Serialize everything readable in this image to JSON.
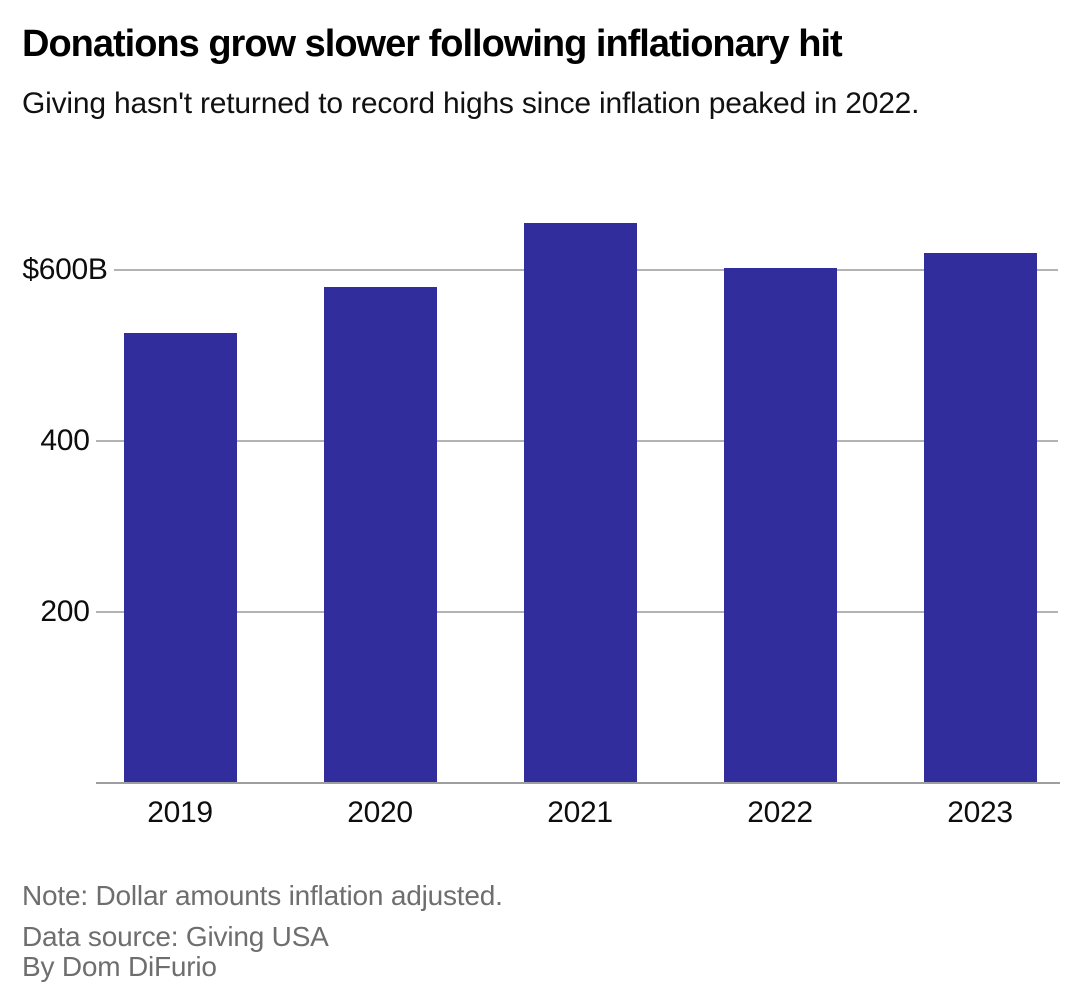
{
  "header": {
    "title": "Donations grow slower following inflationary hit",
    "subtitle": "Giving hasn't returned to record highs since inflation peaked in 2022."
  },
  "chart_data": {
    "type": "bar",
    "title": "Donations grow slower following inflationary hit",
    "subtitle": "Giving hasn't returned to record highs since inflation peaked in 2022.",
    "categories": [
      "2019",
      "2020",
      "2021",
      "2022",
      "2023"
    ],
    "values": [
      526,
      580,
      655,
      602,
      619
    ],
    "unit": "billions of US dollars",
    "xlabel": "",
    "ylabel": "",
    "ylim": [
      0,
      664
    ],
    "yticks": [
      {
        "value": 200,
        "label": "200"
      },
      {
        "value": 400,
        "label": "400"
      },
      {
        "value": 600,
        "label": "$600B"
      }
    ],
    "grid": true,
    "legend": "none",
    "bar_color": "#322D9C",
    "gridline_color": "#b3b3b3",
    "axis_line_color": "#9e9e9e",
    "label_color": "#0d0d0d"
  },
  "footer": {
    "note": "Note: Dollar amounts inflation adjusted.",
    "source": "Data source: Giving USA",
    "byline": "By Dom DiFurio"
  }
}
